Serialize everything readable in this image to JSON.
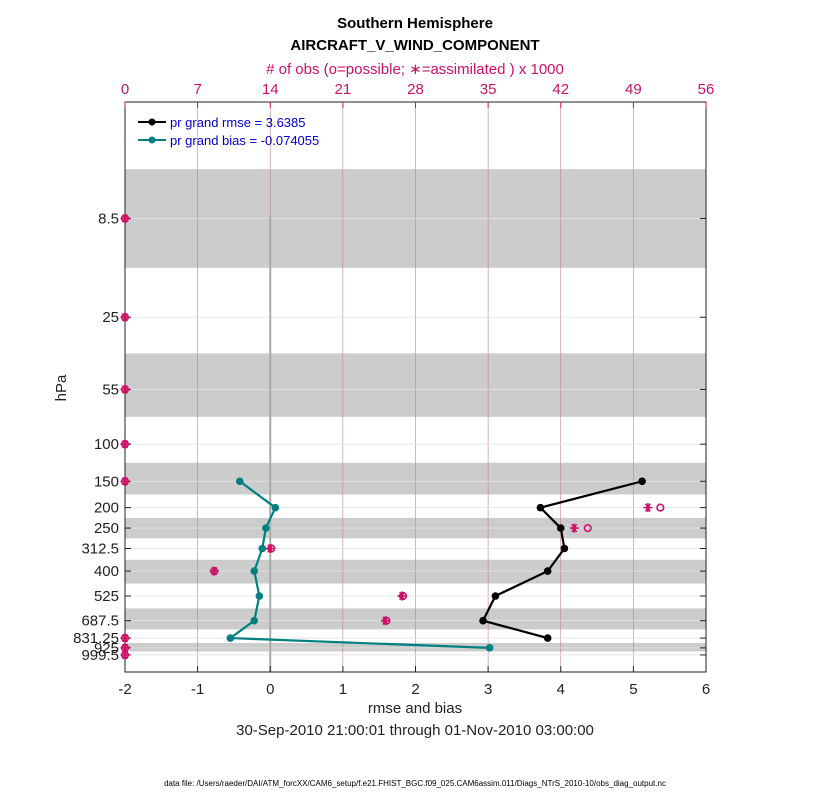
{
  "chart_data": {
    "type": "line",
    "title": "Southern Hemisphere",
    "subtitle": "AIRCRAFT_V_WIND_COMPONENT",
    "top_axis_label": "# of obs (o=possible; ∗=assimilated ) x 1000",
    "top_ticks": [
      "0",
      "7",
      "14",
      "21",
      "28",
      "35",
      "42",
      "49",
      "56"
    ],
    "top_xlim": [
      0,
      56
    ],
    "xlabel": "rmse and bias",
    "ylabel": "hPa",
    "xlim": [
      -2,
      6
    ],
    "x_ticks": [
      "-2",
      "-1",
      "0",
      "1",
      "2",
      "3",
      "4",
      "5",
      "6"
    ],
    "date_range": "30-Sep-2010 21:00:01 through 01-Nov-2010 03:00:00",
    "footnote": "data file: /Users/raeder/DAI/ATM_forcXX/CAM6_setup/f.e21.FHIST_BGC.f09_025.CAM6assim.011/Diags_NTrS_2010-10/obs_diag_output.nc",
    "levels": [
      "8.5",
      "25",
      "55",
      "100",
      "150",
      "200",
      "250",
      "312.5",
      "400",
      "525",
      "687.5",
      "831.25",
      "925",
      "999.5"
    ],
    "grid": true,
    "legend_position": "top-left",
    "series": [
      {
        "name": "pr grand rmse = 3.6385",
        "color": "#000000",
        "points": [
          {
            "level": "150",
            "value": 5.12
          },
          {
            "level": "200",
            "value": 3.72
          },
          {
            "level": "250",
            "value": 4.0
          },
          {
            "level": "312.5",
            "value": 4.05
          },
          {
            "level": "400",
            "value": 3.82
          },
          {
            "level": "525",
            "value": 3.1
          },
          {
            "level": "687.5",
            "value": 2.93
          },
          {
            "level": "831.25",
            "value": 3.82
          }
        ]
      },
      {
        "name": "pr grand bias = -0.074055",
        "color": "#008080",
        "points": [
          {
            "level": "150",
            "value": -0.42
          },
          {
            "level": "200",
            "value": 0.07
          },
          {
            "level": "250",
            "value": -0.06
          },
          {
            "level": "312.5",
            "value": -0.11
          },
          {
            "level": "400",
            "value": -0.22
          },
          {
            "level": "525",
            "value": -0.15
          },
          {
            "level": "687.5",
            "value": -0.22
          },
          {
            "level": "831.25",
            "value": -0.55
          },
          {
            "level": "925",
            "value": 3.02
          }
        ]
      }
    ],
    "obs_counts_x1000": [
      {
        "level": "8.5",
        "possible": 0,
        "assimilated": 0
      },
      {
        "level": "25",
        "possible": 0,
        "assimilated": 0
      },
      {
        "level": "55",
        "possible": 0,
        "assimilated": 0
      },
      {
        "level": "100",
        "possible": 0,
        "assimilated": 0
      },
      {
        "level": "150",
        "possible": 0,
        "assimilated": 0
      },
      {
        "level": "200",
        "possible": 51.6,
        "assimilated": 50.4
      },
      {
        "level": "250",
        "possible": 44.6,
        "assimilated": 43.3
      },
      {
        "level": "312.5",
        "possible": 14.1,
        "assimilated": 14.0
      },
      {
        "level": "400",
        "possible": 8.6,
        "assimilated": 8.6
      },
      {
        "level": "525",
        "possible": 26.8,
        "assimilated": 26.7
      },
      {
        "level": "687.5",
        "possible": 25.2,
        "assimilated": 25.1
      },
      {
        "level": "831.25",
        "possible": 0,
        "assimilated": 0
      },
      {
        "level": "925",
        "possible": 0,
        "assimilated": 0
      },
      {
        "level": "999.5",
        "possible": 0,
        "assimilated": 0
      }
    ],
    "shaded_level_bands": [
      {
        "from": "8.5",
        "to": "8.5"
      },
      {
        "from": "55",
        "to": "55"
      },
      {
        "from": "150",
        "to": "150"
      },
      {
        "from": "250",
        "to": "250"
      },
      {
        "from": "400",
        "to": "400"
      },
      {
        "from": "687.5",
        "to": "687.5"
      },
      {
        "from": "925",
        "to": "925"
      }
    ],
    "colors": {
      "rmse": "#000000",
      "bias": "#008080",
      "obs": "#cc1166",
      "shade": "#cccccc",
      "legend_text": "#0000cc"
    }
  }
}
